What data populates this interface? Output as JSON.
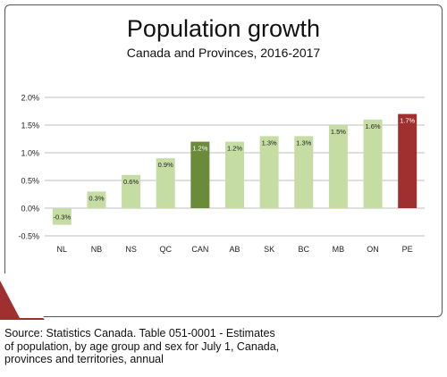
{
  "chart_data": {
    "type": "bar",
    "title": "Population growth",
    "subtitle": "Canada and Provinces, 2016-2017",
    "xlabel": "",
    "ylabel": "",
    "categories": [
      "NL",
      "NB",
      "NS",
      "QC",
      "CAN",
      "AB",
      "SK",
      "BC",
      "MB",
      "ON",
      "PE"
    ],
    "values": [
      -0.3,
      0.3,
      0.6,
      0.9,
      1.2,
      1.2,
      1.3,
      1.3,
      1.5,
      1.6,
      1.7
    ],
    "data_labels": [
      "-0.3%",
      "0.3%",
      "0.6%",
      "0.9%",
      "1.2%",
      "1.2%",
      "1.3%",
      "1.3%",
      "1.5%",
      "1.6%",
      "1.7%"
    ],
    "ylim": [
      -0.5,
      2.0
    ],
    "yticks": [
      2.0,
      1.5,
      1.0,
      0.5,
      0.0,
      -0.5
    ],
    "ytick_labels": [
      "2.0%",
      "1.5%",
      "1.0%",
      "0.5%",
      "0.0%",
      "-0.5%"
    ],
    "grid": true,
    "legend": "none",
    "colors": {
      "default": "#c5dca3",
      "highlight_can": "#6a8c3a",
      "highlight_pe": "#a0302f",
      "grid": "#bfbfbf",
      "corner_accent": "#a0302f"
    }
  },
  "source_note": {
    "lines": [
      "Source: Statistics Canada. Table 051-0001 - Estimates",
      "of population, by age group and sex for July 1, Canada,",
      "provinces and territories, annual"
    ]
  }
}
